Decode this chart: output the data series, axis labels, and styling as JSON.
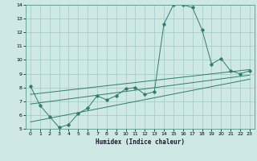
{
  "xlabel": "Humidex (Indice chaleur)",
  "background_color": "#cde8e5",
  "grid_color": "#a8ccca",
  "line_color": "#2e7d6e",
  "xlim": [
    -0.5,
    23.5
  ],
  "ylim": [
    5,
    14
  ],
  "xticks": [
    0,
    1,
    2,
    3,
    4,
    5,
    6,
    7,
    8,
    9,
    10,
    11,
    12,
    13,
    14,
    15,
    16,
    17,
    18,
    19,
    20,
    21,
    22,
    23
  ],
  "yticks": [
    5,
    6,
    7,
    8,
    9,
    10,
    11,
    12,
    13,
    14
  ],
  "series": [
    [
      0,
      8.1
    ],
    [
      1,
      6.7
    ],
    [
      2,
      5.9
    ],
    [
      3,
      5.1
    ],
    [
      4,
      5.3
    ],
    [
      5,
      6.1
    ],
    [
      6,
      6.5
    ],
    [
      7,
      7.4
    ],
    [
      8,
      7.1
    ],
    [
      9,
      7.4
    ],
    [
      10,
      7.9
    ],
    [
      11,
      8.0
    ],
    [
      12,
      7.5
    ],
    [
      13,
      7.7
    ],
    [
      14,
      12.6
    ],
    [
      15,
      14.0
    ],
    [
      16,
      14.0
    ],
    [
      17,
      13.8
    ],
    [
      18,
      12.2
    ],
    [
      19,
      9.7
    ],
    [
      20,
      10.1
    ],
    [
      21,
      9.2
    ],
    [
      22,
      9.0
    ],
    [
      23,
      9.2
    ]
  ],
  "linear_series1": [
    [
      0,
      5.5
    ],
    [
      23,
      8.6
    ]
  ],
  "linear_series2": [
    [
      0,
      6.8
    ],
    [
      23,
      8.9
    ]
  ],
  "linear_series3": [
    [
      0,
      7.5
    ],
    [
      23,
      9.3
    ]
  ]
}
